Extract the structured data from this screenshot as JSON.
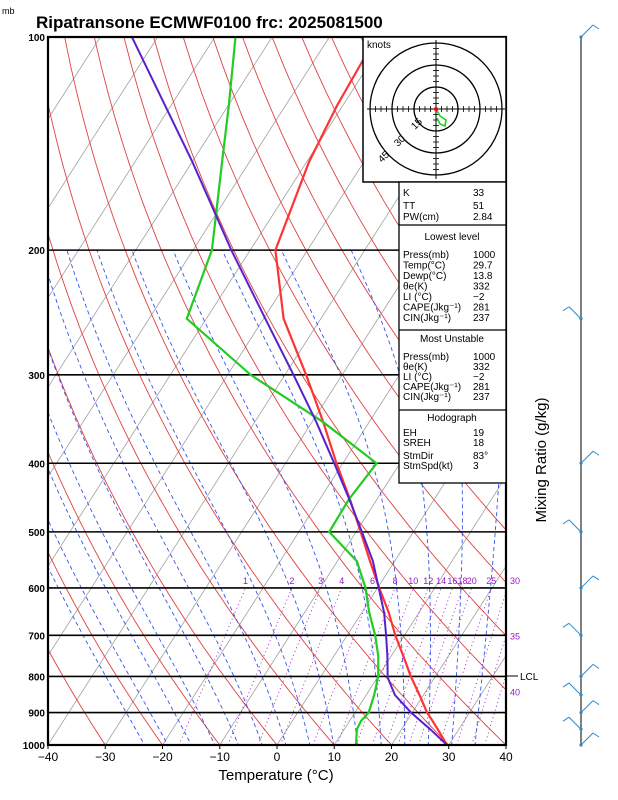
{
  "header": {
    "title": "Ripatransone ECMWF0100  frc: 2025081500",
    "pressure_unit": "mb"
  },
  "axes": {
    "xlabel": "Temperature (°C)",
    "mixing_label": "Mixing Ratio (g/kg)",
    "lcl_label": "LCL",
    "hodo_unit": "knots",
    "hodo_rings": [
      "15",
      "30",
      "45"
    ]
  },
  "colors": {
    "temperature": "#ff3333",
    "dewpoint": "#22cc22",
    "parcel": "#5522cc",
    "dry_adiabat": "#e04040",
    "moist_adiabat": "#3355ee",
    "isotherm": "#a0a0a0",
    "mixing_ratio": "#9b18c8"
  },
  "chart_data": {
    "type": "line",
    "title": "Ripatransone ECMWF0100  frc: 2025081500",
    "xlabel": "Temperature (°C)",
    "ylabel": "mb",
    "xlim": [
      -40,
      40
    ],
    "ylim": [
      1000,
      100
    ],
    "x_ticks": [
      "−40",
      "−30",
      "−20",
      "−10",
      "0",
      "10",
      "20",
      "30",
      "40"
    ],
    "y_ticks": [
      "100",
      "200",
      "300",
      "400",
      "500",
      "600",
      "700",
      "800",
      "900",
      "1000"
    ],
    "series": [
      {
        "kind": "temperature",
        "p": [
          1000,
          950,
          925,
          900,
          850,
          800,
          750,
          700,
          650,
          600,
          550,
          500,
          450,
          400,
          350,
          300,
          250,
          200,
          150,
          125,
          100
        ],
        "t": [
          29.7,
          26.3,
          24.5,
          22.6,
          19.3,
          15.7,
          12.2,
          8.4,
          4.7,
          0.3,
          -4.3,
          -9.2,
          -14.7,
          -21.1,
          -28.0,
          -36.3,
          -46.5,
          -55.6,
          -59.6,
          -61.0,
          -61.8
        ]
      },
      {
        "kind": "dewpoint",
        "p": [
          1000,
          950,
          925,
          900,
          850,
          800,
          750,
          700,
          650,
          600,
          550,
          500,
          450,
          400,
          350,
          300,
          250,
          200,
          150,
          125,
          100
        ],
        "t": [
          13.8,
          12.2,
          12.0,
          12.4,
          11.4,
          10.0,
          7.8,
          4.9,
          1.3,
          -2.1,
          -6.6,
          -14.7,
          -14.9,
          -14.1,
          -28.0,
          -46.0,
          -63.4,
          -66.7,
          -74.8,
          -79.9,
          -86.4
        ]
      },
      {
        "kind": "parcel",
        "p": [
          1000,
          950,
          900,
          850,
          803,
          750,
          700,
          650,
          600,
          550,
          500,
          450,
          400,
          350,
          300,
          250,
          200,
          150,
          100
        ],
        "t": [
          29.7,
          25.0,
          19.8,
          15.0,
          11.8,
          9.4,
          6.8,
          3.9,
          0.2,
          -3.8,
          -9.0,
          -14.8,
          -21.5,
          -29.2,
          -38.5,
          -49.7,
          -63.3,
          -80.0,
          -104.5
        ]
      }
    ],
    "mixing_ratio_labels": [
      "1",
      "2",
      "3",
      "4",
      "6",
      "8",
      "10",
      "12",
      "14",
      "16",
      "18",
      "20",
      "25",
      "30",
      "35",
      "40"
    ],
    "lcl_pressure": 803
  },
  "indices": {
    "k": {
      "label": "K",
      "value": "33"
    },
    "tt": {
      "label": "TT",
      "value": "51"
    },
    "pw": {
      "label": "PW(cm)",
      "value": "2.84"
    },
    "lowest": {
      "title": "Lowest level",
      "rows": [
        {
          "label": "Press(mb)",
          "value": "1000"
        },
        {
          "label": "Temp(°C)",
          "value": "29.7"
        },
        {
          "label": "Dewp(°C)",
          "value": "13.8"
        },
        {
          "label": "θe(K)",
          "value": "332"
        },
        {
          "label": "LI (°C)",
          "value": "−2"
        },
        {
          "label": "CAPE(Jkg⁻¹)",
          "value": "281"
        },
        {
          "label": "CIN(Jkg⁻¹)",
          "value": "237"
        }
      ]
    },
    "unstable": {
      "title": "Most Unstable",
      "rows": [
        {
          "label": "Press(mb)",
          "value": "1000"
        },
        {
          "label": "θe(K)",
          "value": "332"
        },
        {
          "label": "LI (°C)",
          "value": "−2"
        },
        {
          "label": "CAPE(Jkg⁻¹)",
          "value": "281"
        },
        {
          "label": "CIN(Jkg⁻¹)",
          "value": "237"
        }
      ]
    },
    "hodograph": {
      "title": "Hodograph",
      "rows": [
        {
          "label": "EH",
          "value": "19"
        },
        {
          "label": "SREH",
          "value": "18"
        },
        {
          "label": "StmDir",
          "value": "83°"
        },
        {
          "label": "StmSpd(kt)",
          "value": "3"
        }
      ]
    }
  },
  "wind_barbs_note": ""
}
